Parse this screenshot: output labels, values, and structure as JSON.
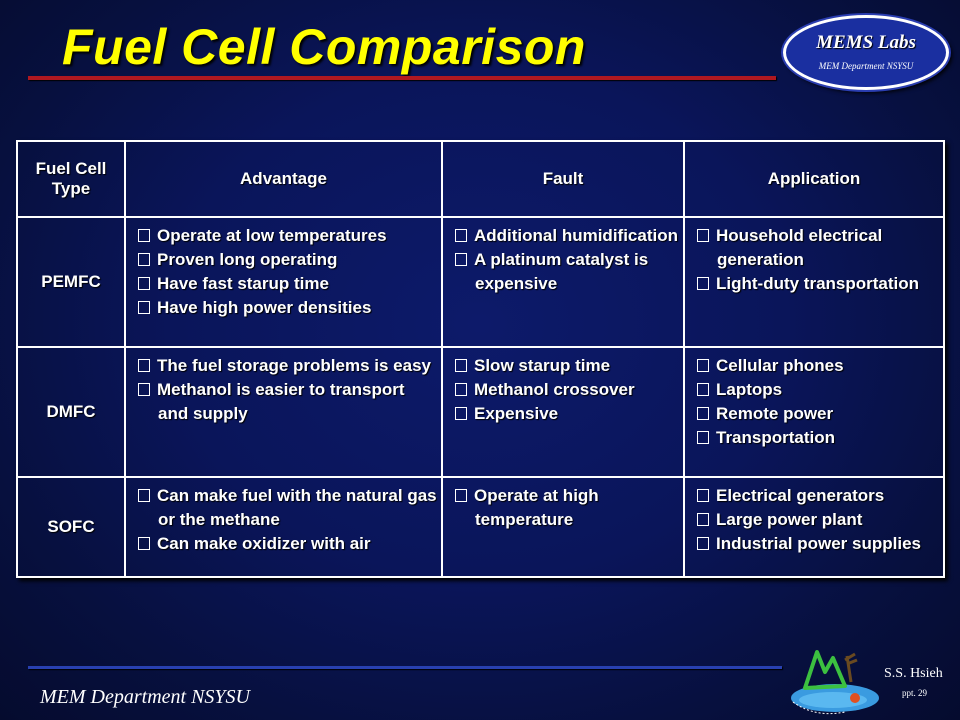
{
  "title": "Fuel Cell Comparison",
  "logo": {
    "main": "MEMS Labs",
    "sub": "MEM Department NSYSU"
  },
  "table": {
    "headers": [
      "Fuel Cell Type",
      "Advantage",
      "Fault",
      "Application"
    ],
    "rows": [
      {
        "type": "PEMFC",
        "advantage": [
          "Operate at low temperatures",
          "Proven long operating",
          "Have fast starup time",
          "Have high power densities"
        ],
        "fault": [
          "Additional humidification",
          "A platinum catalyst is expensive"
        ],
        "application": [
          "Household electrical generation",
          "Light-duty transportation"
        ]
      },
      {
        "type": "DMFC",
        "advantage": [
          "The fuel storage problems is easy",
          "Methanol is easier to transport and supply"
        ],
        "fault": [
          "Slow starup time",
          "Methanol crossover",
          "Expensive"
        ],
        "application": [
          "Cellular phones",
          "Laptops",
          "Remote power",
          "Transportation"
        ]
      },
      {
        "type": "SOFC",
        "advantage": [
          "Can make fuel with the natural gas or the methane",
          "Can make oxidizer with air"
        ],
        "fault": [
          "Operate at high temperature"
        ],
        "application": [
          "Electrical generators",
          "Large power plant",
          "Industrial power supplies"
        ]
      }
    ]
  },
  "footer": {
    "department": "MEM Department NSYSU",
    "author": "S.S. Hsieh",
    "slide": "ppt. 29"
  },
  "colors": {
    "background": "#0a155a",
    "title": "#ffff00",
    "rule": "#b01820",
    "text": "#ffffff"
  },
  "icons": {
    "bullet": "checkbox-bullet-icon",
    "emblem": "mems-lab-emblem-icon"
  }
}
